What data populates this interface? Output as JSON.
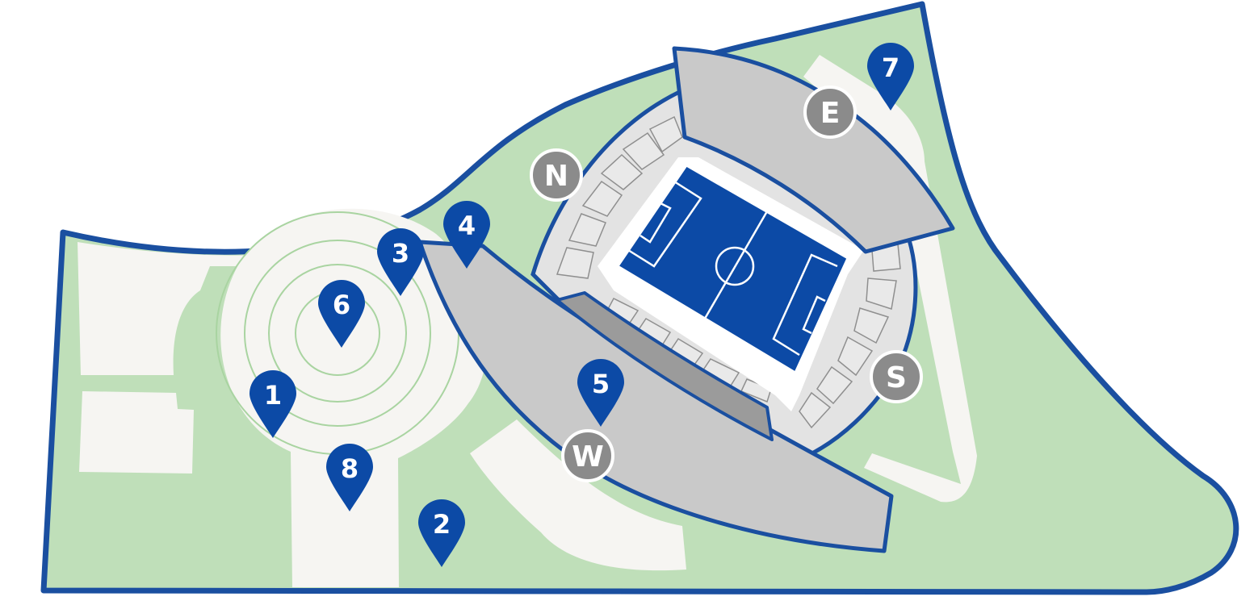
{
  "colors": {
    "grass": "#bfdfb9",
    "border": "#1a4fa0",
    "path": "#f6f5f2",
    "stand_fill": "#c9c9c9",
    "stand_dark": "#9b9b9b",
    "concourse": "#e3e3e3",
    "pitch": "#0c4aa6",
    "pin": "#0c4aa6",
    "gate": "#8b8b8b",
    "ring": "#a9d4a1"
  },
  "pins": [
    {
      "id": "pin-1",
      "label": "1",
      "icon": "map-pin-icon"
    },
    {
      "id": "pin-2",
      "label": "2",
      "icon": "map-pin-icon"
    },
    {
      "id": "pin-3",
      "label": "3",
      "icon": "map-pin-icon"
    },
    {
      "id": "pin-4",
      "label": "4",
      "icon": "map-pin-icon"
    },
    {
      "id": "pin-5",
      "label": "5",
      "icon": "map-pin-icon"
    },
    {
      "id": "pin-6",
      "label": "6",
      "icon": "map-pin-icon"
    },
    {
      "id": "pin-7",
      "label": "7",
      "icon": "map-pin-icon"
    },
    {
      "id": "pin-8",
      "label": "8",
      "icon": "map-pin-icon"
    }
  ],
  "gates": [
    {
      "id": "gate-n",
      "label": "N"
    },
    {
      "id": "gate-e",
      "label": "E"
    },
    {
      "id": "gate-s",
      "label": "S"
    },
    {
      "id": "gate-w",
      "label": "W"
    }
  ]
}
